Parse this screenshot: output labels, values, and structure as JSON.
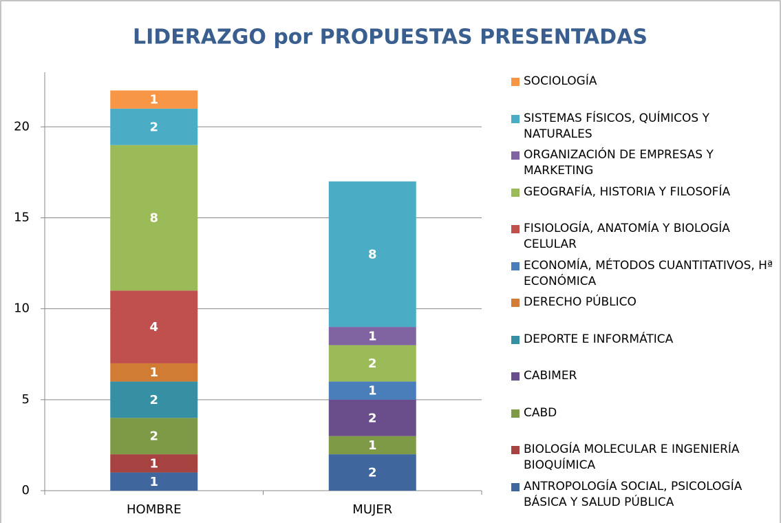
{
  "chart_data": {
    "type": "stacked_bar",
    "title": "LIDERAZGO por PROPUESTAS PRESENTADAS",
    "categories": [
      "HOMBRE",
      "MUJER"
    ],
    "ylim": [
      0,
      23
    ],
    "yticks": [
      0,
      5,
      10,
      15,
      20
    ],
    "grid": true,
    "series": [
      {
        "name": "ANTROPOLOGÍA SOCIAL, PSICOLOGÍA BÁSICA Y SALUD PÚBLICA",
        "color": "#3f679e",
        "values": [
          1,
          2
        ]
      },
      {
        "name": "BIOLOGÍA MOLECULAR E INGENIERÍA BIOQUÍMICA",
        "color": "#a6423f",
        "values": [
          1,
          null
        ]
      },
      {
        "name": "CABD",
        "color": "#7e9a47",
        "values": [
          2,
          1
        ]
      },
      {
        "name": "CABIMER",
        "color": "#6a4e8c",
        "values": [
          null,
          2
        ]
      },
      {
        "name": "DEPORTE E INFORMÁTICA",
        "color": "#378fa3",
        "values": [
          2,
          null
        ]
      },
      {
        "name": "DERECHO PÚBLICO",
        "color": "#d07c35",
        "values": [
          1,
          null
        ]
      },
      {
        "name": "ECONOMÍA, MÉTODOS CUANTITATIVOS, Hª ECONÓMICA",
        "color": "#4a7ebb",
        "values": [
          null,
          1
        ]
      },
      {
        "name": "FISIOLOGÍA, ANATOMÍA Y BIOLOGÍA CELULAR",
        "color": "#c0504d",
        "values": [
          4,
          null
        ]
      },
      {
        "name": "GEOGRAFÍA, HISTORIA Y FILOSOFÍA",
        "color": "#9bbb59",
        "values": [
          8,
          2
        ]
      },
      {
        "name": "ORGANIZACIÓN DE EMPRESAS Y MARKETING",
        "color": "#8064a2",
        "values": [
          null,
          1
        ]
      },
      {
        "name": "SISTEMAS FÍSICOS, QUÍMICOS Y NATURALES",
        "color": "#4bacc6",
        "values": [
          2,
          8
        ]
      },
      {
        "name": "SOCIOLOGÍA",
        "color": "#f79646",
        "values": [
          1,
          null
        ]
      }
    ]
  }
}
